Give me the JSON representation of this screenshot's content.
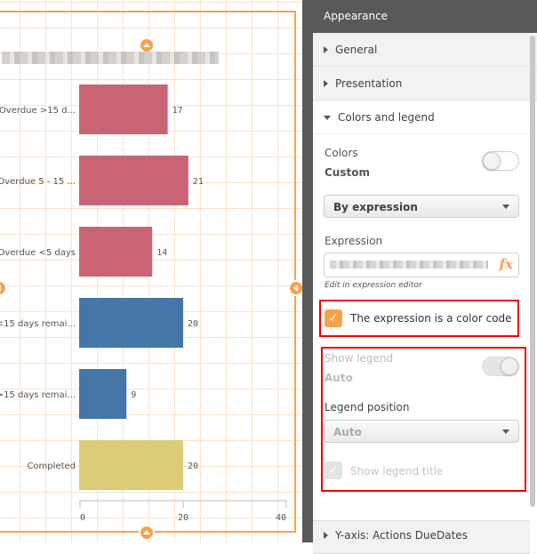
{
  "chart": {
    "title_blurred": true
  },
  "chart_data": {
    "type": "bar",
    "orientation": "horizontal",
    "categories": [
      "Overdue >15 d...",
      "Overdue 5 - 15 ...",
      "Overdue <5 days",
      "<15 days remai...",
      ">15 days remai...",
      "Completed"
    ],
    "values": [
      17,
      21,
      14,
      20,
      9,
      20
    ],
    "colors": [
      "#c96474",
      "#c96474",
      "#c96474",
      "#4476a8",
      "#4476a8",
      "#dccc78"
    ],
    "data_labels": [
      "17",
      "21",
      "14",
      "20",
      "9",
      "20"
    ],
    "xlim": [
      0,
      40
    ],
    "x_ticks": [
      "0",
      "20",
      "40"
    ],
    "grid": false
  },
  "panel": {
    "title": "Appearance",
    "sections": {
      "general": "General",
      "presentation": "Presentation",
      "colors_legend": "Colors and legend",
      "y_axis": "Y-axis: Actions DueDates"
    },
    "colors": {
      "label": "Colors",
      "mode": "Custom",
      "auto_toggle_on": false,
      "dropdown_value": "By expression",
      "expression_label": "Expression",
      "expression_blurred": true,
      "fx_icon": "fx",
      "edit_hint": "Edit in expression editor",
      "color_code_checkbox_label": "The expression is a color code",
      "color_code_checked": true
    },
    "legend": {
      "show_legend_label": "Show legend",
      "show_legend_value": "Auto",
      "position_label": "Legend position",
      "position_value": "Auto",
      "show_title_label": "Show legend title",
      "show_title_checked": true
    },
    "accent_color": "#f8a14b",
    "highlight_color": "#e00000"
  }
}
